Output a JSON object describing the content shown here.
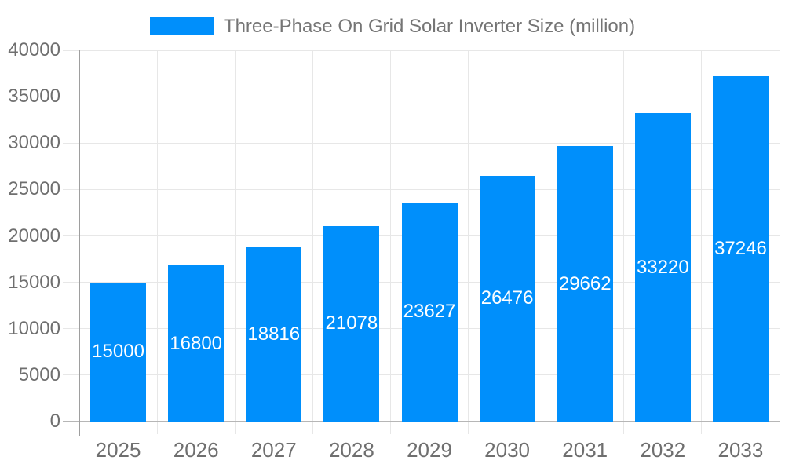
{
  "chart_data": {
    "type": "bar",
    "title": "Three-Phase On Grid Solar Inverter Size (million)",
    "series_name": "Three-Phase On Grid Solar Inverter Size (million)",
    "legend_position": "top",
    "categories": [
      "2025",
      "2026",
      "2027",
      "2028",
      "2029",
      "2030",
      "2031",
      "2032",
      "2033"
    ],
    "values": [
      15000,
      16800,
      18816,
      21078,
      23627,
      26476,
      29662,
      33220,
      37246
    ],
    "yticks": [
      0,
      5000,
      10000,
      15000,
      20000,
      25000,
      30000,
      35000,
      40000
    ],
    "ylim": [
      0,
      40000
    ],
    "xlabel": "",
    "ylabel": "",
    "grid": true
  },
  "colors": {
    "bar": "#008FFB",
    "data_label": "#FFFFFF",
    "grid_line": "#E7E7E7",
    "x_axis_line": "#B6B6B6",
    "y_axis_line": "#9E9E9E",
    "tick_text": "#6F6F6F",
    "legend_text": "#757575",
    "background": "#FFFFFF"
  }
}
